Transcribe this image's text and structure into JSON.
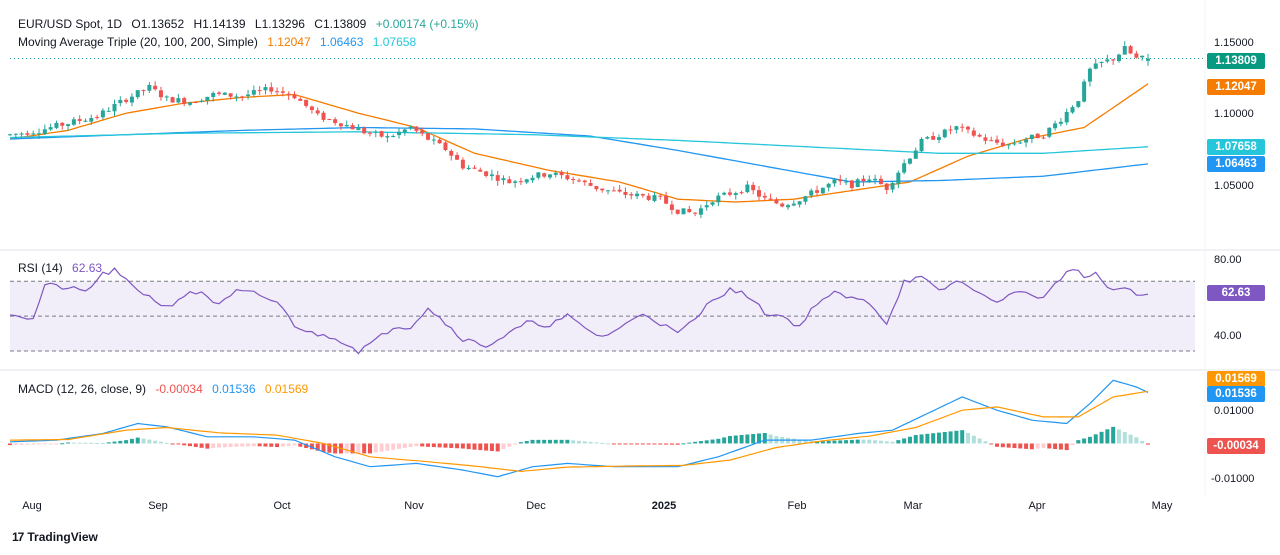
{
  "header": {
    "symbol": "EUR/USD Spot, 1D",
    "open_label": "O",
    "open": "1.13652",
    "high_label": "H",
    "high": "1.14139",
    "low_label": "L",
    "low": "1.13296",
    "close_label": "C",
    "close": "1.13809",
    "change": "+0.00174 (+0.15%)"
  },
  "ma_legend": {
    "label": "Moving Average Triple (20, 100, 200, Simple)",
    "ma20": "1.12047",
    "ma100": "1.06463",
    "ma200": "1.07658"
  },
  "rsi_legend": {
    "label": "RSI (14)",
    "value": "62.63"
  },
  "macd_legend": {
    "label": "MACD (12, 26, close, 9)",
    "hist": "-0.00034",
    "macd": "0.01536",
    "signal": "0.01569"
  },
  "price_axis": {
    "ticks": [
      "1.15000",
      "1.10000",
      "1.05000"
    ]
  },
  "rsi_axis": {
    "ticks": [
      "80.00",
      "40.00"
    ]
  },
  "macd_axis": {
    "ticks": [
      "0.01000",
      "-0.01000"
    ]
  },
  "price_tags": {
    "close": "1.13809",
    "ma20": "1.12047",
    "ma200": "1.07658",
    "ma100": "1.06463",
    "rsi": "62.63",
    "signal": "0.01569",
    "macd": "0.01536",
    "hist": "-0.00034"
  },
  "x_axis": {
    "labels": [
      "Aug",
      "Sep",
      "Oct",
      "Nov",
      "Dec",
      "2025",
      "Feb",
      "Mar",
      "Apr",
      "May"
    ]
  },
  "brand": {
    "logo": "17",
    "name": "TradingView"
  },
  "colors": {
    "up": "#26a69a",
    "down": "#ef5350",
    "ma20": "#f57c00",
    "ma100": "#2196f3",
    "ma200": "#26c6da",
    "rsi": "#7e57c2",
    "macd": "#2196f3",
    "signal": "#ff9800"
  },
  "chart_data": [
    {
      "type": "candlestick",
      "title": "EUR/USD Spot, 1D",
      "ylim": [
        1.015,
        1.165
      ],
      "month_index": {
        "Aug": 5,
        "Sep": 27,
        "Oct": 49,
        "Nov": 72,
        "Dec": 93,
        "2025": 115,
        "Feb": 137,
        "Mar": 156,
        "Apr": 178,
        "May": 200
      },
      "close_path": [
        [
          0,
          1.085
        ],
        [
          5,
          1.088
        ],
        [
          10,
          1.093
        ],
        [
          15,
          1.098
        ],
        [
          20,
          1.11
        ],
        [
          24,
          1.118
        ],
        [
          27,
          1.11
        ],
        [
          31,
          1.108
        ],
        [
          35,
          1.113
        ],
        [
          40,
          1.112
        ],
        [
          45,
          1.117
        ],
        [
          49,
          1.112
        ],
        [
          53,
          1.098
        ],
        [
          57,
          1.093
        ],
        [
          61,
          1.087
        ],
        [
          65,
          1.083
        ],
        [
          69,
          1.09
        ],
        [
          72,
          1.082
        ],
        [
          75,
          1.075
        ],
        [
          78,
          1.063
        ],
        [
          82,
          1.058
        ],
        [
          86,
          1.052
        ],
        [
          90,
          1.056
        ],
        [
          93,
          1.058
        ],
        [
          97,
          1.054
        ],
        [
          101,
          1.048
        ],
        [
          105,
          1.044
        ],
        [
          109,
          1.042
        ],
        [
          112,
          1.04
        ],
        [
          115,
          1.032
        ],
        [
          118,
          1.03
        ],
        [
          121,
          1.04
        ],
        [
          124,
          1.044
        ],
        [
          127,
          1.048
        ],
        [
          130,
          1.04
        ],
        [
          133,
          1.036
        ],
        [
          136,
          1.04
        ],
        [
          139,
          1.046
        ],
        [
          142,
          1.052
        ],
        [
          145,
          1.05
        ],
        [
          148,
          1.055
        ],
        [
          151,
          1.048
        ],
        [
          154,
          1.065
        ],
        [
          157,
          1.08
        ],
        [
          160,
          1.085
        ],
        [
          163,
          1.09
        ],
        [
          166,
          1.085
        ],
        [
          169,
          1.08
        ],
        [
          172,
          1.078
        ],
        [
          175,
          1.082
        ],
        [
          178,
          1.085
        ],
        [
          181,
          1.096
        ],
        [
          184,
          1.11
        ],
        [
          186,
          1.13
        ],
        [
          188,
          1.135
        ],
        [
          190,
          1.138
        ],
        [
          192,
          1.145
        ],
        [
          194,
          1.138
        ],
        [
          196,
          1.1381
        ]
      ],
      "last_candle": {
        "open": 1.13652,
        "high": 1.14139,
        "low": 1.13296,
        "close": 1.13809
      },
      "moving_averages": [
        {
          "name": "MA 20",
          "path": [
            [
              0,
              1.082
            ],
            [
              10,
              1.088
            ],
            [
              20,
              1.1
            ],
            [
              30,
              1.107
            ],
            [
              40,
              1.111
            ],
            [
              49,
              1.113
            ],
            [
              60,
              1.1
            ],
            [
              70,
              1.09
            ],
            [
              80,
              1.072
            ],
            [
              93,
              1.06
            ],
            [
              105,
              1.052
            ],
            [
              115,
              1.04
            ],
            [
              125,
              1.038
            ],
            [
              135,
              1.04
            ],
            [
              145,
              1.046
            ],
            [
              155,
              1.052
            ],
            [
              165,
              1.07
            ],
            [
              175,
              1.082
            ],
            [
              185,
              1.09
            ],
            [
              196,
              1.12047
            ]
          ]
        },
        {
          "name": "MA 100",
          "path": [
            [
              0,
              1.082
            ],
            [
              20,
              1.085
            ],
            [
              40,
              1.088
            ],
            [
              60,
              1.09
            ],
            [
              80,
              1.089
            ],
            [
              100,
              1.084
            ],
            [
              115,
              1.074
            ],
            [
              130,
              1.063
            ],
            [
              145,
              1.052
            ],
            [
              160,
              1.053
            ],
            [
              178,
              1.056
            ],
            [
              196,
              1.06463
            ]
          ]
        },
        {
          "name": "MA 200",
          "path": [
            [
              0,
              1.083
            ],
            [
              30,
              1.086
            ],
            [
              60,
              1.087
            ],
            [
              90,
              1.085
            ],
            [
              115,
              1.081
            ],
            [
              140,
              1.076
            ],
            [
              160,
              1.072
            ],
            [
              178,
              1.072
            ],
            [
              196,
              1.07658
            ]
          ]
        }
      ]
    },
    {
      "type": "line",
      "title": "RSI (14)",
      "ylim": [
        22,
        85
      ],
      "reference_lines": [
        70,
        50,
        30
      ],
      "path": [
        [
          0,
          52
        ],
        [
          4,
          48
        ],
        [
          6,
          68
        ],
        [
          10,
          66
        ],
        [
          13,
          64
        ],
        [
          16,
          74
        ],
        [
          18,
          76
        ],
        [
          20,
          70
        ],
        [
          24,
          61
        ],
        [
          27,
          55
        ],
        [
          30,
          62
        ],
        [
          33,
          64
        ],
        [
          36,
          56
        ],
        [
          39,
          64
        ],
        [
          42,
          63
        ],
        [
          46,
          58
        ],
        [
          49,
          45
        ],
        [
          52,
          40
        ],
        [
          56,
          38
        ],
        [
          60,
          30
        ],
        [
          63,
          36
        ],
        [
          66,
          44
        ],
        [
          69,
          44
        ],
        [
          72,
          55
        ],
        [
          75,
          46
        ],
        [
          78,
          37
        ],
        [
          82,
          33
        ],
        [
          86,
          40
        ],
        [
          89,
          46
        ],
        [
          93,
          45
        ],
        [
          96,
          50
        ],
        [
          99,
          43
        ],
        [
          102,
          38
        ],
        [
          106,
          45
        ],
        [
          109,
          52
        ],
        [
          112,
          46
        ],
        [
          115,
          40
        ],
        [
          118,
          48
        ],
        [
          121,
          60
        ],
        [
          124,
          65
        ],
        [
          127,
          62
        ],
        [
          130,
          52
        ],
        [
          133,
          50
        ],
        [
          136,
          44
        ],
        [
          139,
          58
        ],
        [
          142,
          63
        ],
        [
          145,
          60
        ],
        [
          148,
          58
        ],
        [
          151,
          46
        ],
        [
          154,
          70
        ],
        [
          157,
          72
        ],
        [
          160,
          64
        ],
        [
          163,
          70
        ],
        [
          166,
          66
        ],
        [
          169,
          58
        ],
        [
          172,
          62
        ],
        [
          175,
          64
        ],
        [
          178,
          60
        ],
        [
          181,
          72
        ],
        [
          183,
          78
        ],
        [
          185,
          72
        ],
        [
          187,
          75
        ],
        [
          189,
          65
        ],
        [
          192,
          66
        ],
        [
          194,
          62
        ],
        [
          196,
          62.63
        ]
      ]
    },
    {
      "type": "macd",
      "title": "MACD (12, 26, close, 9)",
      "ylim": [
        -0.014,
        0.0215
      ],
      "macd_path": [
        [
          0,
          0.0005
        ],
        [
          8,
          0.001
        ],
        [
          16,
          0.003
        ],
        [
          22,
          0.006
        ],
        [
          27,
          0.005
        ],
        [
          34,
          0.002
        ],
        [
          42,
          0.002
        ],
        [
          49,
          0.001
        ],
        [
          56,
          -0.004
        ],
        [
          62,
          -0.007
        ],
        [
          70,
          -0.006
        ],
        [
          78,
          -0.008
        ],
        [
          84,
          -0.01
        ],
        [
          90,
          -0.007
        ],
        [
          96,
          -0.006
        ],
        [
          104,
          -0.007
        ],
        [
          115,
          -0.007
        ],
        [
          122,
          -0.004
        ],
        [
          130,
          0.001
        ],
        [
          138,
          0.001
        ],
        [
          146,
          0.003
        ],
        [
          152,
          0.004
        ],
        [
          158,
          0.009
        ],
        [
          164,
          0.014
        ],
        [
          170,
          0.01
        ],
        [
          176,
          0.007
        ],
        [
          182,
          0.006
        ],
        [
          186,
          0.012
        ],
        [
          190,
          0.019
        ],
        [
          194,
          0.017
        ],
        [
          196,
          0.01536
        ]
      ],
      "signal_path": [
        [
          0,
          0.001
        ],
        [
          10,
          0.0012
        ],
        [
          20,
          0.004
        ],
        [
          27,
          0.0048
        ],
        [
          36,
          0.0032
        ],
        [
          46,
          0.0025
        ],
        [
          54,
          0.0
        ],
        [
          62,
          -0.004
        ],
        [
          72,
          -0.0055
        ],
        [
          80,
          -0.0068
        ],
        [
          88,
          -0.0084
        ],
        [
          96,
          -0.0071
        ],
        [
          106,
          -0.0068
        ],
        [
          116,
          -0.0066
        ],
        [
          124,
          -0.005
        ],
        [
          132,
          -0.0012
        ],
        [
          140,
          0.0008
        ],
        [
          148,
          0.0022
        ],
        [
          156,
          0.0048
        ],
        [
          164,
          0.01
        ],
        [
          170,
          0.011
        ],
        [
          178,
          0.008
        ],
        [
          184,
          0.008
        ],
        [
          190,
          0.014
        ],
        [
          196,
          0.01569
        ]
      ]
    }
  ]
}
